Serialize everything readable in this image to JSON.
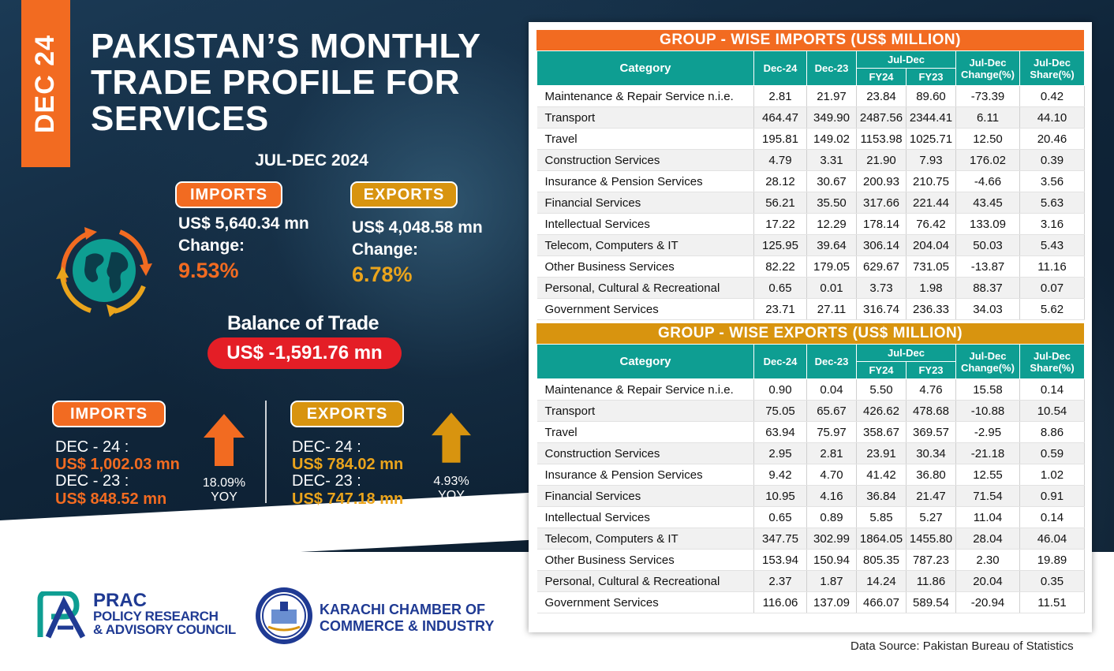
{
  "header": {
    "date_tab": "DEC 24",
    "title_lines": [
      "PAKISTAN’S MONTHLY",
      "TRADE PROFILE FOR",
      "SERVICES"
    ],
    "period": "JUL-DEC 2024"
  },
  "summary": {
    "imports": {
      "label": "IMPORTS",
      "value": "US$ 5,640.34 mn",
      "change_label": "Change:",
      "change": "9.53%"
    },
    "exports": {
      "label": "EXPORTS",
      "value": "US$  4,048.58 mn",
      "change_label": "Change:",
      "change": "6.78%"
    },
    "balance_label": "Balance of Trade",
    "balance_value": "US$ -1,591.76 mn"
  },
  "monthly": {
    "imports": {
      "label": "IMPORTS",
      "line1": "DEC - 24 :",
      "value1": "US$ 1,002.03 mn",
      "line2": "DEC - 23 :",
      "value2": "US$ 848.52  mn",
      "yoy_pct": "18.09%",
      "yoy": "YOY"
    },
    "exports": {
      "label": "EXPORTS",
      "line1": "DEC- 24 :",
      "value1": "US$ 784.02 mn",
      "line2": "DEC- 23 :",
      "value2": "US$ 747.18 mn",
      "yoy_pct": "4.93%",
      "yoy": "YOY"
    }
  },
  "colors": {
    "orange": "#f26b21",
    "gold": "#d8940f",
    "teal": "#0e9e92",
    "red": "#e41e26",
    "navy": "#1f3a93"
  },
  "icons": [
    "globe-icon",
    "up-arrow-icon",
    "prac-logo-icon",
    "kcci-seal-icon"
  ],
  "chart_data": [
    {
      "type": "table",
      "title": "GROUP - WISE IMPORTS (US$ MILLION)",
      "columns": {
        "category": "Category",
        "dec24": "Dec-24",
        "dec23": "Dec-23",
        "juldec": "Jul-Dec",
        "fy24": "FY24",
        "fy23": "FY23",
        "change": "Jul-Dec Change(%)",
        "share": "Jul-Dec Share(%)"
      },
      "rows": [
        [
          "Maintenance & Repair Service n.i.e.",
          "2.81",
          "21.97",
          "23.84",
          "89.60",
          "-73.39",
          "0.42"
        ],
        [
          "Transport",
          "464.47",
          "349.90",
          "2487.56",
          "2344.41",
          "6.11",
          "44.10"
        ],
        [
          "Travel",
          "195.81",
          "149.02",
          "1153.98",
          "1025.71",
          "12.50",
          "20.46"
        ],
        [
          "Construction Services",
          "4.79",
          "3.31",
          "21.90",
          "7.93",
          "176.02",
          "0.39"
        ],
        [
          "Insurance & Pension Services",
          "28.12",
          "30.67",
          "200.93",
          "210.75",
          "-4.66",
          "3.56"
        ],
        [
          "Financial Services",
          "56.21",
          "35.50",
          "317.66",
          "221.44",
          "43.45",
          "5.63"
        ],
        [
          "Intellectual Services",
          "17.22",
          "12.29",
          "178.14",
          "76.42",
          "133.09",
          "3.16"
        ],
        [
          "Telecom, Computers & IT",
          "125.95",
          "39.64",
          "306.14",
          "204.04",
          "50.03",
          "5.43"
        ],
        [
          "Other Business Services",
          "82.22",
          "179.05",
          "629.67",
          "731.05",
          "-13.87",
          "11.16"
        ],
        [
          "Personal, Cultural & Recreational",
          "0.65",
          "0.01",
          "3.73",
          "1.98",
          "88.37",
          "0.07"
        ],
        [
          "Government Services",
          "23.71",
          "27.11",
          "316.74",
          "236.33",
          "34.03",
          "5.62"
        ]
      ]
    },
    {
      "type": "table",
      "title": "GROUP - WISE EXPORTS (US$ MILLION)",
      "columns": {
        "category": "Category",
        "dec24": "Dec-24",
        "dec23": "Dec-23",
        "juldec": "Jul-Dec",
        "fy24": "FY24",
        "fy23": "FY23",
        "change": "Jul-Dec Change(%)",
        "share": "Jul-Dec Share(%)"
      },
      "rows": [
        [
          "Maintenance & Repair Service n.i.e.",
          "0.90",
          "0.04",
          "5.50",
          "4.76",
          "15.58",
          "0.14"
        ],
        [
          "Transport",
          "75.05",
          "65.67",
          "426.62",
          "478.68",
          "-10.88",
          "10.54"
        ],
        [
          "Travel",
          "63.94",
          "75.97",
          "358.67",
          "369.57",
          "-2.95",
          "8.86"
        ],
        [
          "Construction Services",
          "2.95",
          "2.81",
          "23.91",
          "30.34",
          "-21.18",
          "0.59"
        ],
        [
          "Insurance & Pension Services",
          "9.42",
          "4.70",
          "41.42",
          "36.80",
          "12.55",
          "1.02"
        ],
        [
          "Financial Services",
          "10.95",
          "4.16",
          "36.84",
          "21.47",
          "71.54",
          "0.91"
        ],
        [
          "Intellectual Services",
          "0.65",
          "0.89",
          "5.85",
          "5.27",
          "11.04",
          "0.14"
        ],
        [
          "Telecom, Computers & IT",
          "347.75",
          "302.99",
          "1864.05",
          "1455.80",
          "28.04",
          "46.04"
        ],
        [
          "Other Business Services",
          "153.94",
          "150.94",
          "805.35",
          "787.23",
          "2.30",
          "19.89"
        ],
        [
          "Personal, Cultural & Recreational",
          "2.37",
          "1.87",
          "14.24",
          "11.86",
          "20.04",
          "0.35"
        ],
        [
          "Government Services",
          "116.06",
          "137.09",
          "466.07",
          "589.54",
          "-20.94",
          "11.51"
        ]
      ]
    }
  ],
  "footer": {
    "prac_title": "PRAC",
    "prac_sub1": "POLICY RESEARCH",
    "prac_sub2": "& ADVISORY COUNCIL",
    "kcci_line1": "KARACHI CHAMBER OF",
    "kcci_line2": "COMMERCE & INDUSTRY",
    "source": "Data Source: Pakistan Bureau of Statistics"
  }
}
